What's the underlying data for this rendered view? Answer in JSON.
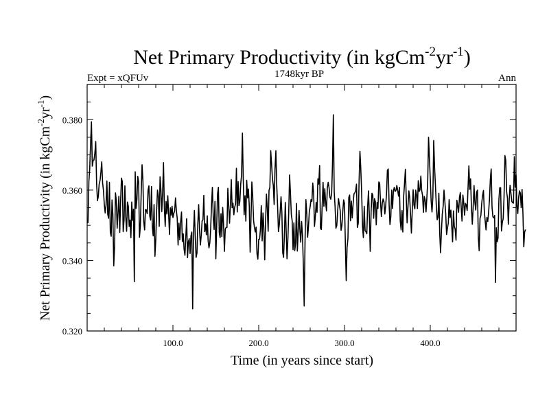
{
  "chart_data": {
    "type": "line",
    "title": {
      "prefix": "Net Primary Productivity (in kgCm",
      "sup1": "-2",
      "mid": "yr",
      "sup2": "-1",
      "suffix": ")"
    },
    "subtitle_left": "Expt = xQFUv",
    "subtitle_center": "1748kyr BP",
    "subtitle_right": "Ann",
    "xlabel": "Time (in years since start)",
    "ylabel": {
      "prefix": "Net Primary Productivity (in kgCm",
      "sup1": "-2",
      "mid": "yr",
      "sup2": "-1",
      "suffix": ")"
    },
    "xlim": [
      0,
      500
    ],
    "ylim": [
      0.32,
      0.39
    ],
    "xticks": [
      100,
      200,
      300,
      400
    ],
    "xtick_labels": [
      "100.0",
      "200.0",
      "300.0",
      "400.0"
    ],
    "yticks": [
      0.32,
      0.34,
      0.36,
      0.38
    ],
    "ytick_labels": [
      "0.320",
      "0.340",
      "0.360",
      "0.380"
    ],
    "grid": false,
    "series": [
      {
        "name": "Net Primary Productivity",
        "x_start": 1,
        "x_step": 1,
        "values": [
          0.3506,
          0.3624,
          0.3662,
          0.3732,
          0.3794,
          0.3668,
          0.3684,
          0.3686,
          0.3706,
          0.3738,
          0.362,
          0.357,
          0.3582,
          0.3617,
          0.3627,
          0.365,
          0.368,
          0.3621,
          0.3599,
          0.3559,
          0.3535,
          0.3558,
          0.3626,
          0.3531,
          0.352,
          0.3622,
          0.348,
          0.3469,
          0.3572,
          0.3529,
          0.3385,
          0.344,
          0.3592,
          0.357,
          0.3492,
          0.3535,
          0.3583,
          0.348,
          0.3568,
          0.3634,
          0.3624,
          0.3482,
          0.3514,
          0.3612,
          0.3523,
          0.3483,
          0.3566,
          0.3554,
          0.3497,
          0.3515,
          0.3465,
          0.3566,
          0.3514,
          0.3546,
          0.334,
          0.3652,
          0.3548,
          0.3574,
          0.3639,
          0.3623,
          0.3466,
          0.3498,
          0.3591,
          0.3672,
          0.3627,
          0.351,
          0.3487,
          0.3545,
          0.3544,
          0.3533,
          0.36,
          0.3612,
          0.3526,
          0.3515,
          0.361,
          0.3496,
          0.347,
          0.3559,
          0.3412,
          0.3459,
          0.3544,
          0.36,
          0.3583,
          0.3497,
          0.3638,
          0.3601,
          0.3539,
          0.3593,
          0.3678,
          0.355,
          0.3497,
          0.3568,
          0.3532,
          0.3584,
          0.3532,
          0.3474,
          0.355,
          0.3529,
          0.3554,
          0.3522,
          0.3534,
          0.3541,
          0.3578,
          0.3542,
          0.352,
          0.3444,
          0.3506,
          0.3459,
          0.351,
          0.3538,
          0.3454,
          0.3476,
          0.3432,
          0.3415,
          0.3468,
          0.3519,
          0.3408,
          0.3453,
          0.3462,
          0.342,
          0.347,
          0.3481,
          0.3263,
          0.3482,
          0.3542,
          0.3468,
          0.3409,
          0.3421,
          0.3504,
          0.3559,
          0.3488,
          0.3444,
          0.3471,
          0.3512,
          0.3516,
          0.3585,
          0.3482,
          0.3504,
          0.3473,
          0.3527,
          0.3457,
          0.3436,
          0.345,
          0.349,
          0.356,
          0.3608,
          0.3522,
          0.3488,
          0.3568,
          0.3405,
          0.3496,
          0.3589,
          0.3608,
          0.3479,
          0.3465,
          0.3533,
          0.3468,
          0.3551,
          0.3504,
          0.3426,
          0.3489,
          0.3494,
          0.3494,
          0.3605,
          0.3555,
          0.3506,
          0.3558,
          0.363,
          0.355,
          0.3563,
          0.353,
          0.3552,
          0.356,
          0.3662,
          0.3538,
          0.3624,
          0.3556,
          0.3568,
          0.3617,
          0.3642,
          0.3762,
          0.363,
          0.353,
          0.3584,
          0.3512,
          0.3628,
          0.3578,
          0.3603,
          0.3554,
          0.3424,
          0.352,
          0.3623,
          0.3583,
          0.3514,
          0.3494,
          0.3481,
          0.3495,
          0.3419,
          0.3404,
          0.346,
          0.3461,
          0.3489,
          0.3556,
          0.3456,
          0.3535,
          0.3493,
          0.3402,
          0.3509,
          0.3589,
          0.3548,
          0.3483,
          0.3599,
          0.3608,
          0.3712,
          0.3674,
          0.3632,
          0.3613,
          0.3559,
          0.3662,
          0.3712,
          0.3614,
          0.3555,
          0.3482,
          0.3502,
          0.3539,
          0.3581,
          0.3536,
          0.3422,
          0.3409,
          0.3478,
          0.3565,
          0.3485,
          0.3405,
          0.346,
          0.3538,
          0.3643,
          0.3592,
          0.3531,
          0.3513,
          0.3431,
          0.3507,
          0.3428,
          0.345,
          0.3562,
          0.3427,
          0.348,
          0.3542,
          0.3487,
          0.3452,
          0.3511,
          0.3473,
          0.3391,
          0.3271,
          0.3454,
          0.3573,
          0.3534,
          0.3466,
          0.3496,
          0.3539,
          0.3554,
          0.3573,
          0.3568,
          0.362,
          0.3592,
          0.3497,
          0.3525,
          0.3565,
          0.3537,
          0.3632,
          0.3617,
          0.367,
          0.3492,
          0.3488,
          0.3556,
          0.3622,
          0.3554,
          0.3604,
          0.3566,
          0.3541,
          0.3607,
          0.3622,
          0.3607,
          0.358,
          0.3574,
          0.359,
          0.3673,
          0.3814,
          0.3595,
          0.3554,
          0.3492,
          0.3499,
          0.3539,
          0.3576,
          0.3559,
          0.3542,
          0.3486,
          0.35,
          0.354,
          0.3572,
          0.3562,
          0.3449,
          0.3343,
          0.3437,
          0.3462,
          0.3579,
          0.3586,
          0.3513,
          0.3569,
          0.3521,
          0.3559,
          0.3589,
          0.3592,
          0.3598,
          0.3617,
          0.3494,
          0.3505,
          0.3625,
          0.371,
          0.3661,
          0.3593,
          0.3498,
          0.3465,
          0.3554,
          0.3485,
          0.3482,
          0.3476,
          0.3555,
          0.3598,
          0.3521,
          0.3426,
          0.3538,
          0.3591,
          0.3586,
          0.352,
          0.3576,
          0.3567,
          0.3501,
          0.3565,
          0.3548,
          0.3623,
          0.362,
          0.3565,
          0.3525,
          0.3562,
          0.3575,
          0.3567,
          0.3532,
          0.3555,
          0.3591,
          0.3656,
          0.366,
          0.356,
          0.3502,
          0.3525,
          0.36,
          0.3548,
          0.3597,
          0.3608,
          0.3596,
          0.3599,
          0.3613,
          0.3599,
          0.3583,
          0.3608,
          0.3512,
          0.3487,
          0.3542,
          0.3481,
          0.3583,
          0.362,
          0.3659,
          0.3576,
          0.3507,
          0.3553,
          0.3598,
          0.3579,
          0.353,
          0.3478,
          0.3543,
          0.3601,
          0.3557,
          0.3547,
          0.36,
          0.3586,
          0.3548,
          0.3627,
          0.3596,
          0.3601,
          0.364,
          0.3598,
          0.3585,
          0.3537,
          0.3582,
          0.3573,
          0.3538,
          0.3577,
          0.3624,
          0.375,
          0.3689,
          0.3632,
          0.3569,
          0.3538,
          0.3579,
          0.3741,
          0.3666,
          0.3614,
          0.3558,
          0.3516,
          0.3523,
          0.3591,
          0.3477,
          0.3422,
          0.3484,
          0.3532,
          0.3554,
          0.36,
          0.3567,
          0.3533,
          0.3474,
          0.3492,
          0.3506,
          0.3573,
          0.3522,
          0.3543,
          0.3499,
          0.3453,
          0.3541,
          0.3497,
          0.3489,
          0.3458,
          0.3571,
          0.3555,
          0.3537,
          0.3579,
          0.3593,
          0.3552,
          0.3512,
          0.3586,
          0.3564,
          0.3529,
          0.3562,
          0.3558,
          0.3542,
          0.3606,
          0.3669,
          0.3602,
          0.3632,
          0.3548,
          0.3503,
          0.3552,
          0.3613,
          0.3566,
          0.3543,
          0.3594,
          0.36,
          0.3466,
          0.3428,
          0.352,
          0.3528,
          0.3563,
          0.3585,
          0.3599,
          0.354,
          0.3512,
          0.3487,
          0.3522,
          0.3511,
          0.3537,
          0.3574,
          0.363,
          0.366,
          0.3551,
          0.3524,
          0.3521,
          0.3528,
          0.3338,
          0.3493,
          0.3453,
          0.3464,
          0.3574,
          0.3607,
          0.3607,
          0.3484,
          0.3509,
          0.3519,
          0.3582,
          0.3698,
          0.3684,
          0.3595,
          0.3577,
          0.3503,
          0.3571,
          0.3614,
          0.3592,
          0.3568,
          0.3564,
          0.3563,
          0.3695,
          0.3608,
          0.3643,
          0.3556,
          0.3533,
          0.3579,
          0.3598,
          0.3591,
          0.355,
          0.3602,
          0.3535,
          0.3439,
          0.3481,
          0.3488
        ]
      }
    ]
  }
}
